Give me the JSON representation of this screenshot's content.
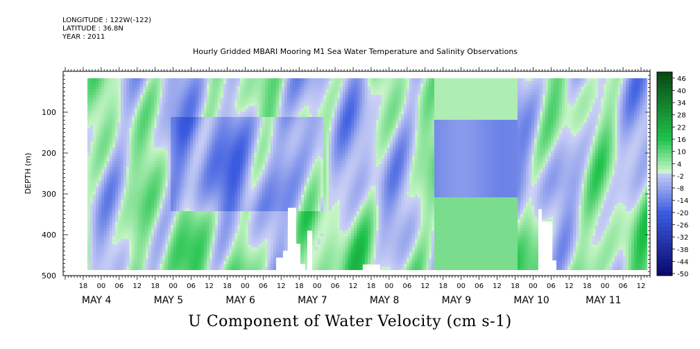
{
  "header": {
    "longitude": "LONGITUDE : 122W(-122)",
    "latitude": "LATITUDE : 36.8N",
    "year": "YEAR : 2011"
  },
  "chart_data": {
    "type": "heatmap",
    "title": "Hourly Gridded MBARI Mooring M1 Sea Water Temperature and Salinity Observations",
    "xlabel": "U Component of Water Velocity (cm s-1)",
    "ylabel": "DEPTH (m)",
    "y_reversed": true,
    "ylim": [
      500,
      0
    ],
    "y_ticks": [
      100,
      200,
      300,
      400,
      500
    ],
    "x_range_hours": [
      "2011-05-03T12:00",
      "2011-05-11T15:00"
    ],
    "hour_tick_labels": [
      "18",
      "00",
      "06",
      "12",
      "18",
      "00",
      "06",
      "12",
      "18",
      "00",
      "06",
      "12",
      "18",
      "00",
      "06",
      "12",
      "18",
      "00",
      "06",
      "12",
      "18",
      "00",
      "06",
      "12",
      "18",
      "00",
      "06",
      "12",
      "18",
      "00",
      "06",
      "12"
    ],
    "date_labels": [
      "MAY  4",
      "MAY  5",
      "MAY  6",
      "MAY  7",
      "MAY  8",
      "MAY  9",
      "MAY 10",
      "MAY 11"
    ],
    "colorbar": {
      "levels": [
        48,
        46,
        44,
        42,
        40,
        38,
        36,
        34,
        32,
        30,
        28,
        26,
        24,
        22,
        20,
        18,
        16,
        14,
        12,
        10,
        8,
        6,
        4,
        2,
        0,
        -2,
        -4,
        -6,
        -8,
        -10,
        -12,
        -14,
        -16,
        -18,
        -20,
        -22,
        -24,
        -26,
        -28,
        -30,
        -32,
        -34,
        -36,
        -38,
        -40,
        -42,
        -44,
        -46,
        -48,
        -50
      ],
      "tick_labels": [
        "46",
        "40",
        "34",
        "28",
        "22",
        "16",
        "10",
        "4",
        "-2",
        "-8",
        "-14",
        "-20",
        "-26",
        "-32",
        "-38",
        "-44",
        "-50"
      ],
      "positive_color": "#1fc24a",
      "negative_color": "#3c5ce0",
      "max_color": "#0a4a14",
      "min_color": "#0a0a6e"
    },
    "data_range_note": "Field mostly between -20 and +16 cm s-1; gaps near bottom on May 7 and May 10"
  }
}
